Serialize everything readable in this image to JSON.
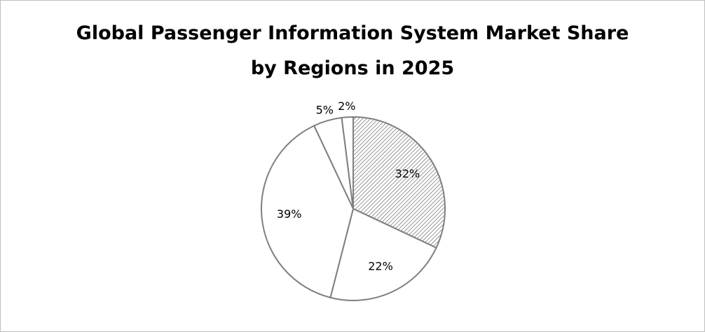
{
  "chart_data": {
    "type": "pie",
    "title": "Global Passenger Information System Market Share\nby Regions in 2025",
    "values": [
      32,
      22,
      39,
      5,
      2
    ],
    "value_labels": [
      "32%",
      "22%",
      "39%",
      "5%",
      "2%"
    ],
    "edge_color": "#7f7f7f",
    "colors": [
      "#ffffff",
      "#ffffff",
      "#ffffff",
      "#ffffff",
      "#ffffff"
    ]
  }
}
